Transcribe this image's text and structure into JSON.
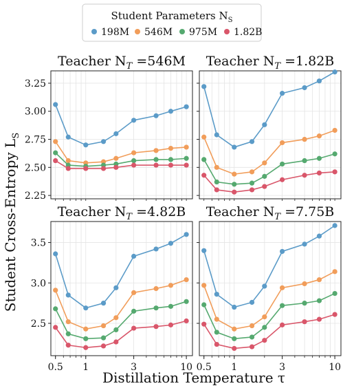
{
  "legend": {
    "title": "Student Parameters N",
    "title_subscript": "S",
    "entries": [
      {
        "label": "198M",
        "color": "#5b9bc8"
      },
      {
        "label": "546M",
        "color": "#f19d5a"
      },
      {
        "label": "975M",
        "color": "#55a96f"
      },
      {
        "label": "1.82B",
        "color": "#d9566a"
      }
    ]
  },
  "ylabel": "Student Cross-Entropy L",
  "ylabel_subscript": "S",
  "xlabel": "Distillation Temperature τ",
  "chart_data": [
    {
      "type": "line",
      "title_prefix": "Teacher N",
      "title_subscript": "T",
      "title_suffix": " =546M",
      "x_scale": "log",
      "x": [
        0.5,
        0.67,
        1.0,
        1.5,
        2.0,
        3.0,
        5.0,
        7.0,
        10.0
      ],
      "xlim": [
        0.45,
        11.5
      ],
      "ylim": [
        2.22,
        3.36
      ],
      "yticks": [
        2.25,
        2.5,
        2.75,
        3.0,
        3.25
      ],
      "ytick_labels": [
        "2.25",
        "2.50",
        "2.75",
        "3.00",
        "3.25"
      ],
      "series": [
        {
          "name": "198M",
          "values": [
            3.06,
            2.77,
            2.7,
            2.73,
            2.8,
            2.92,
            2.96,
            3.0,
            3.04
          ]
        },
        {
          "name": "546M",
          "values": [
            2.73,
            2.56,
            2.54,
            2.55,
            2.58,
            2.63,
            2.65,
            2.67,
            2.68
          ]
        },
        {
          "name": "975M",
          "values": [
            2.63,
            2.52,
            2.51,
            2.52,
            2.53,
            2.56,
            2.57,
            2.57,
            2.58
          ]
        },
        {
          "name": "1.82B",
          "values": [
            2.56,
            2.49,
            2.49,
            2.49,
            2.5,
            2.52,
            2.52,
            2.52,
            2.52
          ]
        }
      ]
    },
    {
      "type": "line",
      "title_prefix": "Teacher N",
      "title_subscript": "T",
      "title_suffix": " =1.82B",
      "x_scale": "log",
      "x": [
        0.5,
        0.67,
        1.0,
        1.5,
        2.0,
        3.0,
        5.0,
        7.0,
        10.0
      ],
      "xlim": [
        0.45,
        11.5
      ],
      "ylim": [
        2.22,
        3.36
      ],
      "yticks": [
        2.25,
        2.5,
        2.75,
        3.0,
        3.25
      ],
      "ytick_labels": [
        "",
        "",
        "",
        "",
        ""
      ],
      "series": [
        {
          "name": "198M",
          "values": [
            3.22,
            2.79,
            2.68,
            2.73,
            2.88,
            3.16,
            3.21,
            3.27,
            3.35
          ]
        },
        {
          "name": "546M",
          "values": [
            2.77,
            2.5,
            2.44,
            2.46,
            2.54,
            2.72,
            2.75,
            2.78,
            2.83
          ]
        },
        {
          "name": "975M",
          "values": [
            2.57,
            2.37,
            2.35,
            2.36,
            2.42,
            2.53,
            2.56,
            2.58,
            2.62
          ]
        },
        {
          "name": "1.82B",
          "values": [
            2.43,
            2.3,
            2.28,
            2.3,
            2.33,
            2.39,
            2.43,
            2.45,
            2.46
          ]
        }
      ]
    },
    {
      "type": "line",
      "title_prefix": "Teacher N",
      "title_subscript": "T",
      "title_suffix": " =4.82B",
      "x_scale": "log",
      "x": [
        0.5,
        0.67,
        1.0,
        1.5,
        2.0,
        3.0,
        5.0,
        7.0,
        10.0
      ],
      "xlim": [
        0.45,
        11.5
      ],
      "ylim": [
        2.1,
        3.76
      ],
      "yticks": [
        2.5,
        3.0,
        3.5
      ],
      "ytick_labels": [
        "2.5",
        "3.0",
        "3.5"
      ],
      "xticks": [
        0.5,
        1,
        3,
        10
      ],
      "xtick_labels": [
        "0.5",
        "1",
        "3",
        "10"
      ],
      "series": [
        {
          "name": "198M",
          "values": [
            3.36,
            2.85,
            2.69,
            2.75,
            2.94,
            3.33,
            3.42,
            3.49,
            3.6
          ]
        },
        {
          "name": "546M",
          "values": [
            2.91,
            2.52,
            2.43,
            2.47,
            2.57,
            2.88,
            2.93,
            2.97,
            3.04
          ]
        },
        {
          "name": "975M",
          "values": [
            2.68,
            2.37,
            2.31,
            2.32,
            2.42,
            2.65,
            2.69,
            2.71,
            2.77
          ]
        },
        {
          "name": "1.82B",
          "values": [
            2.45,
            2.23,
            2.2,
            2.22,
            2.27,
            2.44,
            2.46,
            2.48,
            2.53
          ]
        }
      ]
    },
    {
      "type": "line",
      "title_prefix": "Teacher N",
      "title_subscript": "T",
      "title_suffix": " =7.75B",
      "x_scale": "log",
      "x": [
        0.5,
        0.67,
        1.0,
        1.5,
        2.0,
        3.0,
        5.0,
        7.0,
        10.0
      ],
      "xlim": [
        0.45,
        11.5
      ],
      "ylim": [
        2.1,
        3.76
      ],
      "yticks": [
        2.5,
        3.0,
        3.5
      ],
      "ytick_labels": [
        "",
        "",
        ""
      ],
      "xticks": [
        0.5,
        1,
        3,
        10
      ],
      "xtick_labels": [
        "0.5",
        "1",
        "3",
        "10"
      ],
      "series": [
        {
          "name": "198M",
          "values": [
            3.4,
            2.86,
            2.7,
            2.76,
            2.96,
            3.39,
            3.48,
            3.58,
            3.71
          ]
        },
        {
          "name": "546M",
          "values": [
            2.97,
            2.55,
            2.43,
            2.47,
            2.58,
            2.94,
            2.99,
            3.04,
            3.14
          ]
        },
        {
          "name": "975M",
          "values": [
            2.73,
            2.39,
            2.31,
            2.33,
            2.45,
            2.72,
            2.75,
            2.78,
            2.87
          ]
        },
        {
          "name": "1.82B",
          "values": [
            2.49,
            2.24,
            2.19,
            2.21,
            2.29,
            2.48,
            2.52,
            2.55,
            2.61
          ]
        }
      ]
    }
  ]
}
